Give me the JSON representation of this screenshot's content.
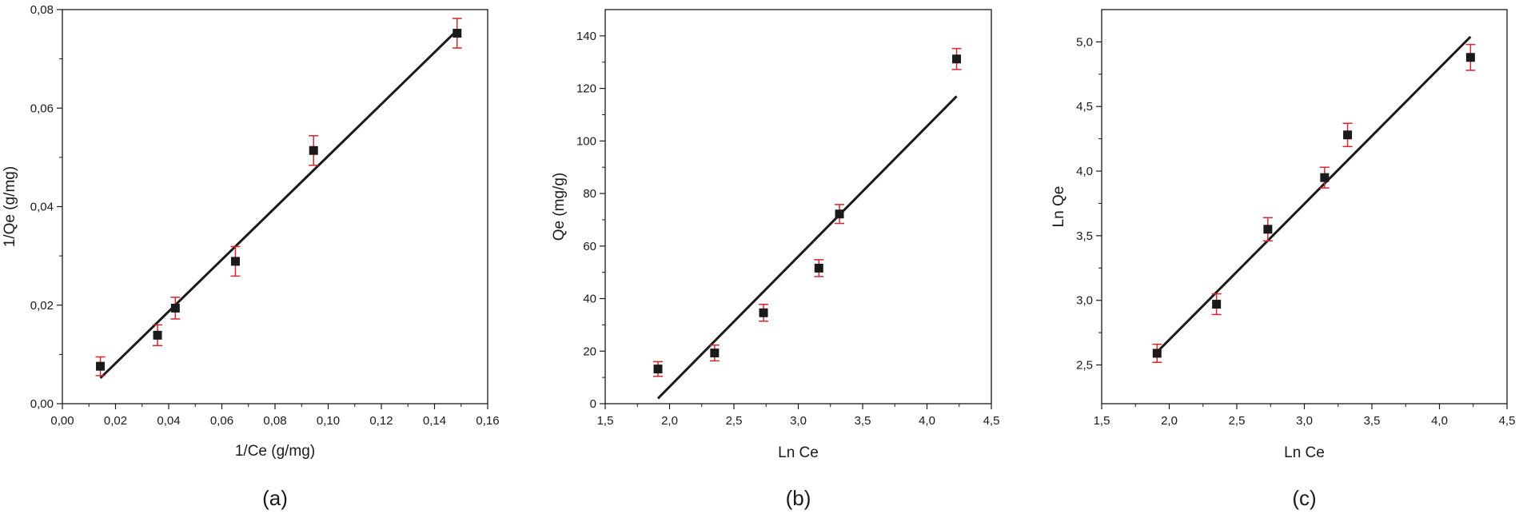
{
  "chart_data": [
    {
      "type": "scatter",
      "panel_label": "(a)",
      "xlabel": "1/Ce (g/mg)",
      "ylabel": "1/Qe (g/mg)",
      "xlim": [
        0.0,
        0.16
      ],
      "ylim": [
        0.0,
        0.08
      ],
      "x_ticks": [
        "0,00",
        "0,02",
        "0,04",
        "0,06",
        "0,08",
        "0,10",
        "0,12",
        "0,14",
        "0,16"
      ],
      "y_ticks": [
        "0,00",
        "0,02",
        "0,04",
        "0,06",
        "0,08"
      ],
      "x_tick_values": [
        0.0,
        0.02,
        0.04,
        0.06,
        0.08,
        0.1,
        0.12,
        0.14,
        0.16
      ],
      "y_tick_values": [
        0.0,
        0.02,
        0.04,
        0.06,
        0.08
      ],
      "points": [
        {
          "x": 0.0143,
          "y": 0.0076,
          "err": 0.0019
        },
        {
          "x": 0.0358,
          "y": 0.0139,
          "err": 0.0021
        },
        {
          "x": 0.0425,
          "y": 0.0194,
          "err": 0.0022
        },
        {
          "x": 0.0651,
          "y": 0.0289,
          "err": 0.003
        },
        {
          "x": 0.0945,
          "y": 0.0514,
          "err": 0.003
        },
        {
          "x": 0.1485,
          "y": 0.0752,
          "err": 0.003
        }
      ],
      "fit_line": {
        "x1": 0.0143,
        "y1": 0.0052,
        "x2": 0.1485,
        "y2": 0.0758
      },
      "grid": false,
      "marker_color": "#1a1a1a",
      "errorbar_color": "#d8262e",
      "line_color": "#1a1a1a"
    },
    {
      "type": "scatter",
      "panel_label": "(b)",
      "xlabel": "Ln Ce",
      "ylabel": "Qe  (mg/g)",
      "xlim": [
        1.5,
        4.5
      ],
      "ylim": [
        0,
        150
      ],
      "x_ticks": [
        "1,5",
        "2,0",
        "2,5",
        "3,0",
        "3,5",
        "4,0",
        "4,5"
      ],
      "y_ticks": [
        "0",
        "20",
        "40",
        "60",
        "80",
        "100",
        "120",
        "140"
      ],
      "x_tick_values": [
        1.5,
        2.0,
        2.5,
        3.0,
        3.5,
        4.0,
        4.5
      ],
      "y_tick_values": [
        0,
        20,
        40,
        60,
        80,
        100,
        120,
        140
      ],
      "points": [
        {
          "x": 1.91,
          "y": 13.2,
          "err": 2.8
        },
        {
          "x": 2.35,
          "y": 19.3,
          "err": 3.0
        },
        {
          "x": 2.73,
          "y": 34.6,
          "err": 3.2
        },
        {
          "x": 3.16,
          "y": 51.6,
          "err": 3.2
        },
        {
          "x": 3.32,
          "y": 72.2,
          "err": 3.6
        },
        {
          "x": 4.23,
          "y": 131.2,
          "err": 4.0
        }
      ],
      "fit_line": {
        "x1": 1.91,
        "y1": 2.0,
        "x2": 4.23,
        "y2": 117.0
      },
      "grid": false,
      "marker_color": "#1a1a1a",
      "errorbar_color": "#d8262e",
      "line_color": "#1a1a1a"
    },
    {
      "type": "scatter",
      "panel_label": "(c)",
      "xlabel": "Ln Ce",
      "ylabel": "Ln Qe",
      "xlim": [
        1.5,
        4.5
      ],
      "ylim": [
        2.2,
        5.25
      ],
      "x_ticks": [
        "1,5",
        "2,0",
        "2,5",
        "3,0",
        "3,5",
        "4,0",
        "4,5"
      ],
      "y_ticks": [
        "2,5",
        "3,0",
        "3,5",
        "4,0",
        "4,5",
        "5,0"
      ],
      "x_tick_values": [
        1.5,
        2.0,
        2.5,
        3.0,
        3.5,
        4.0,
        4.5
      ],
      "y_tick_values": [
        2.5,
        3.0,
        3.5,
        4.0,
        4.5,
        5.0
      ],
      "points": [
        {
          "x": 1.91,
          "y": 2.59,
          "err": 0.07
        },
        {
          "x": 2.35,
          "y": 2.97,
          "err": 0.08
        },
        {
          "x": 2.73,
          "y": 3.55,
          "err": 0.09
        },
        {
          "x": 3.15,
          "y": 3.95,
          "err": 0.08
        },
        {
          "x": 3.32,
          "y": 4.28,
          "err": 0.09
        },
        {
          "x": 4.23,
          "y": 4.88,
          "err": 0.1
        }
      ],
      "fit_line": {
        "x1": 1.91,
        "y1": 2.6,
        "x2": 4.23,
        "y2": 5.04
      },
      "grid": false,
      "marker_color": "#1a1a1a",
      "errorbar_color": "#d8262e",
      "line_color": "#1a1a1a"
    }
  ]
}
